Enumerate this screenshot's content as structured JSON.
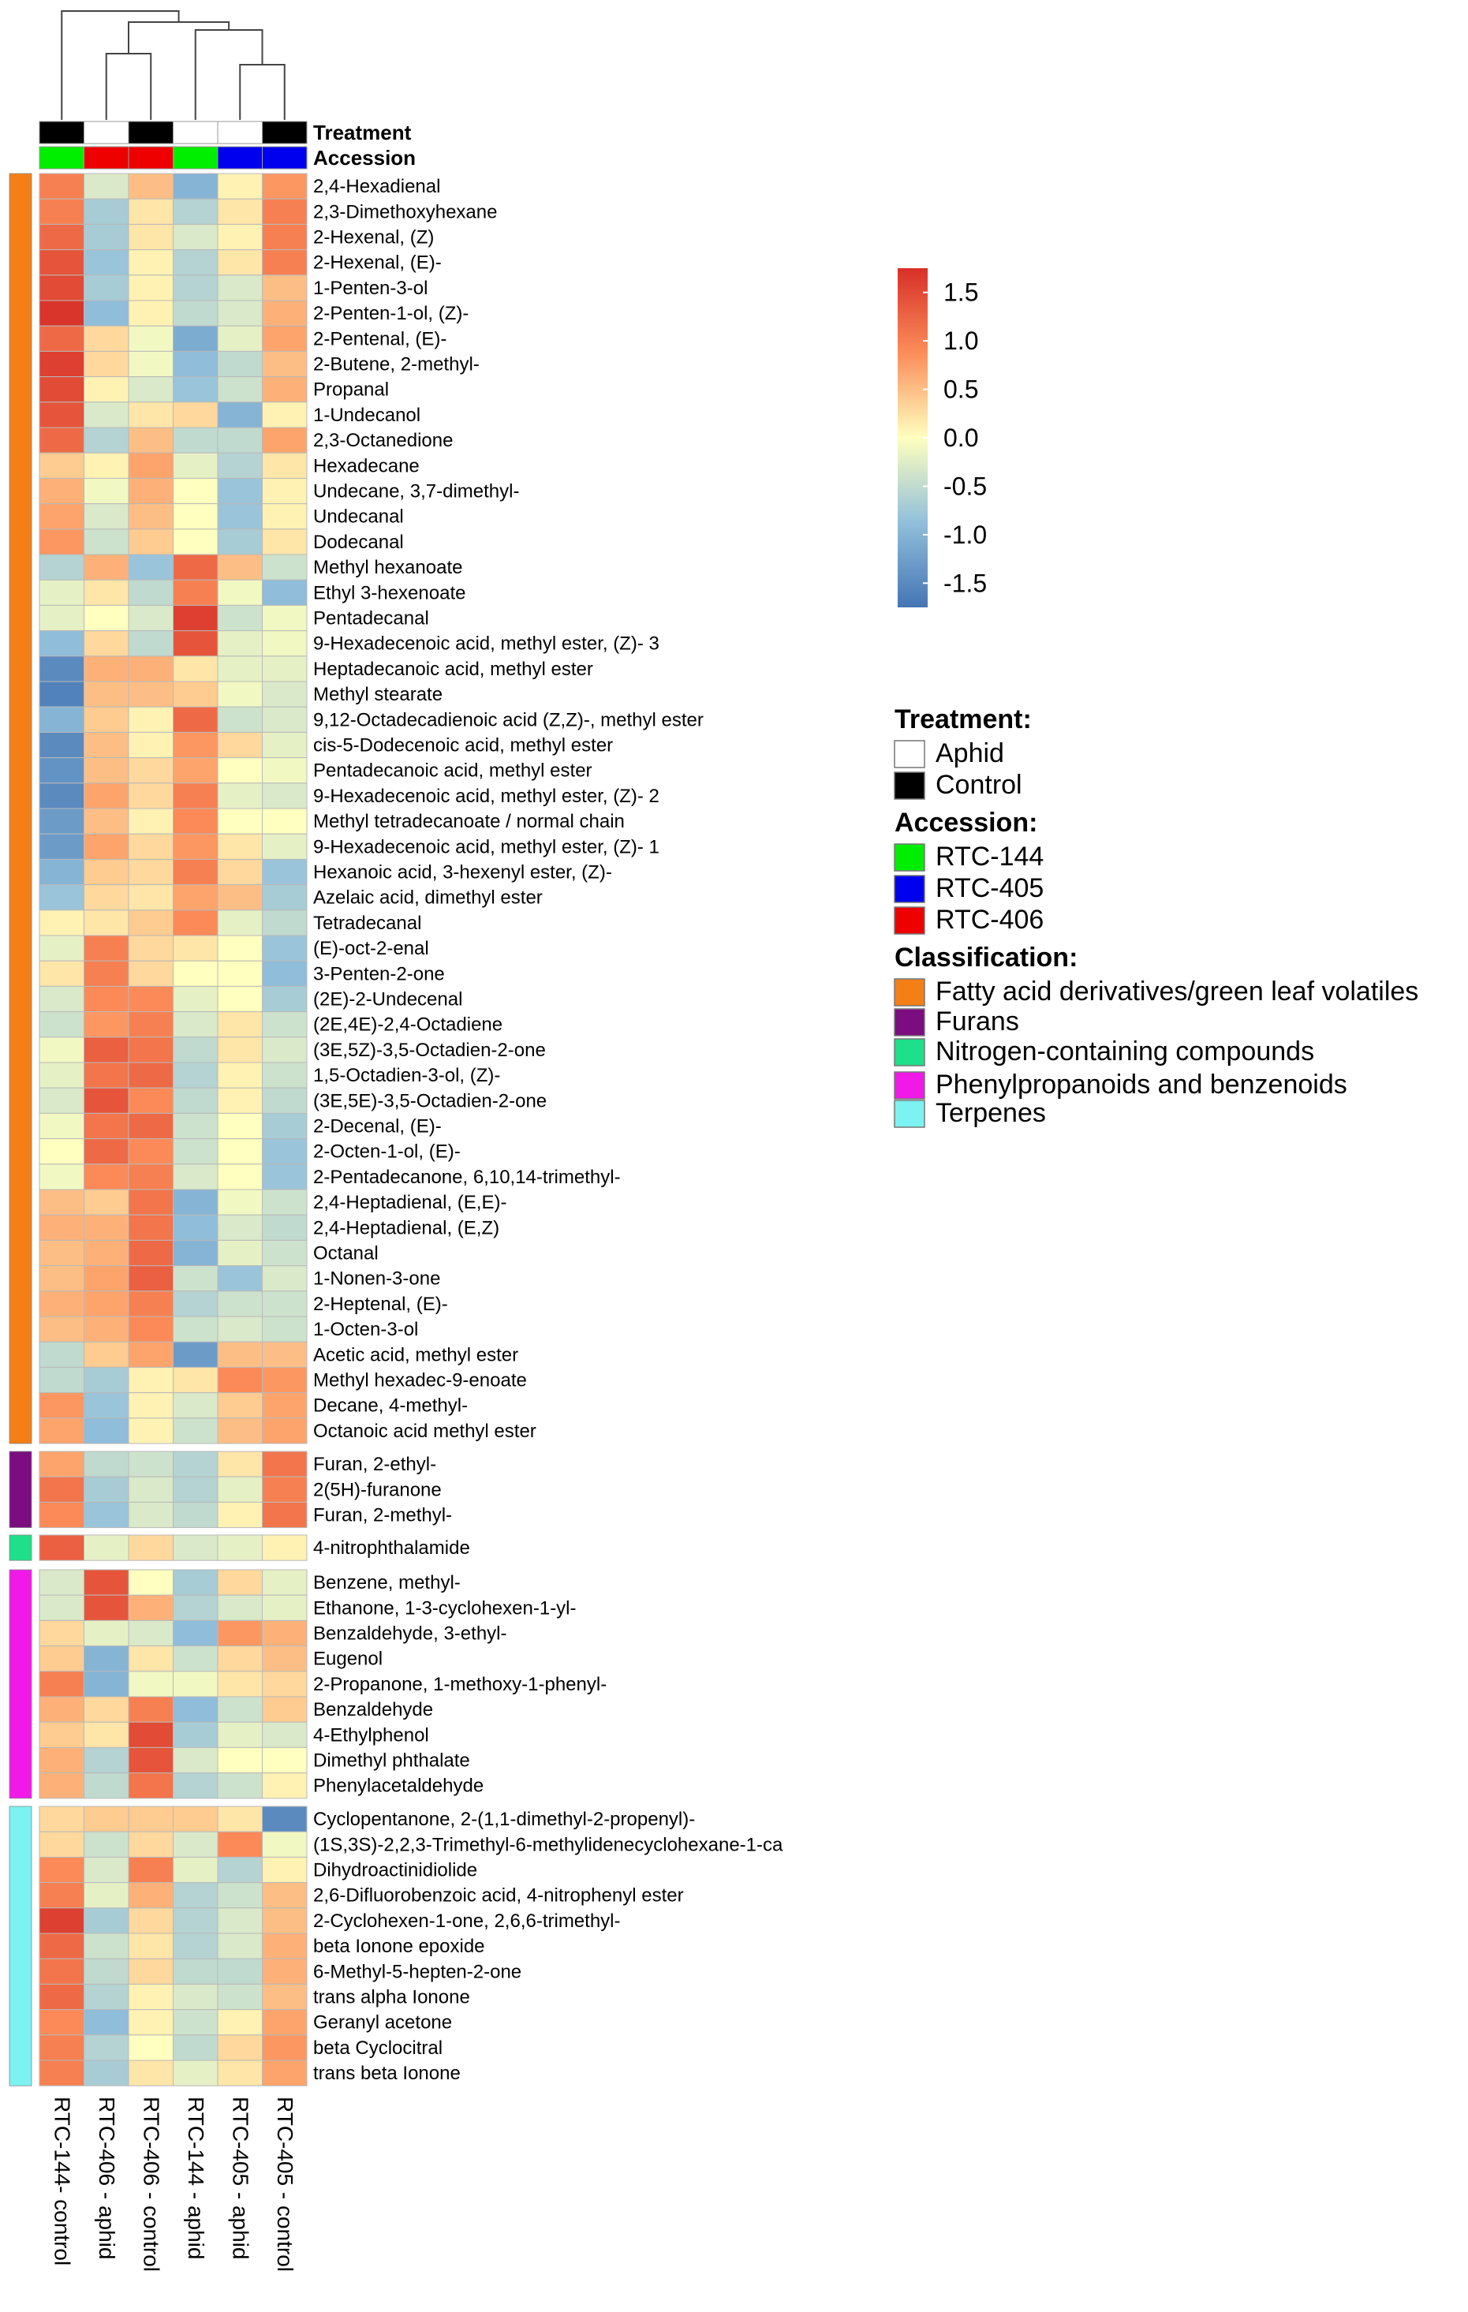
{
  "chart_data": {
    "type": "heatmap",
    "title": "",
    "columns": [
      "RTC-144- control",
      "RTC-406 - aphid",
      "RTC-406 - control",
      "RTC-144 - aphid",
      "RTC-405 - aphid",
      "RTC-405 - control"
    ],
    "column_treatment": [
      "Control",
      "Aphid",
      "Control",
      "Aphid",
      "Aphid",
      "Control"
    ],
    "column_accession": [
      "RTC-144",
      "RTC-406",
      "RTC-406",
      "RTC-144",
      "RTC-405",
      "RTC-405"
    ],
    "annotation_labels": {
      "treatment": "Treatment",
      "accession": "Accession"
    },
    "color_scale": {
      "min": -1.75,
      "max": 1.75,
      "stops": [
        {
          "value": -1.75,
          "color": "#4575b4"
        },
        {
          "value": -0.875,
          "color": "#91bfdb"
        },
        {
          "value": 0.0,
          "color": "#ffffbf"
        },
        {
          "value": 0.875,
          "color": "#fc8d59"
        },
        {
          "value": 1.75,
          "color": "#d73027"
        }
      ],
      "ticks": [
        "1.5",
        "1.0",
        "0.5",
        "0.0",
        "-0.5",
        "-1.0",
        "-1.5"
      ]
    },
    "groups": [
      {
        "classification": "Fatty acid derivatives/green leaf volatiles",
        "rows": [
          {
            "name": "2,4-Hexadienal",
            "values": [
              1.0,
              -0.3,
              0.5,
              -1.0,
              0.1,
              0.8
            ]
          },
          {
            "name": "2,3-Dimethoxyhexane",
            "values": [
              1.0,
              -0.7,
              0.2,
              -0.6,
              0.2,
              1.0
            ]
          },
          {
            "name": "2-Hexenal, (Z)",
            "values": [
              1.2,
              -0.7,
              0.2,
              -0.3,
              0.1,
              1.0
            ]
          },
          {
            "name": "2-Hexenal, (E)-",
            "values": [
              1.4,
              -0.8,
              0.1,
              -0.6,
              0.2,
              1.0
            ]
          },
          {
            "name": "1-Penten-3-ol",
            "values": [
              1.5,
              -0.7,
              0.1,
              -0.6,
              -0.3,
              0.5
            ]
          },
          {
            "name": "2-Penten-1-ol, (Z)-",
            "values": [
              1.7,
              -0.9,
              0.1,
              -0.5,
              -0.3,
              0.6
            ]
          },
          {
            "name": "2-Pentenal, (E)-",
            "values": [
              1.2,
              0.3,
              -0.1,
              -1.1,
              -0.2,
              0.7
            ]
          },
          {
            "name": "2-Butene, 2-methyl-",
            "values": [
              1.6,
              0.3,
              -0.1,
              -0.9,
              -0.5,
              0.5
            ]
          },
          {
            "name": "Propanal",
            "values": [
              1.5,
              0.1,
              -0.3,
              -0.8,
              -0.4,
              0.6
            ]
          },
          {
            "name": "1-Undecanol",
            "values": [
              1.4,
              -0.3,
              0.2,
              0.3,
              -1.0,
              0.1
            ]
          },
          {
            "name": "2,3-Octanedione",
            "values": [
              1.2,
              -0.6,
              0.5,
              -0.5,
              -0.5,
              0.7
            ]
          },
          {
            "name": "Hexadecane",
            "values": [
              0.4,
              0.1,
              0.7,
              -0.2,
              -0.6,
              0.2
            ]
          },
          {
            "name": "Undecane, 3,7-dimethyl-",
            "values": [
              0.6,
              -0.1,
              0.6,
              0.0,
              -0.8,
              0.1
            ]
          },
          {
            "name": "Undecanal",
            "values": [
              0.7,
              -0.3,
              0.5,
              0.0,
              -0.8,
              0.1
            ]
          },
          {
            "name": "Dodecanal",
            "values": [
              0.8,
              -0.4,
              0.4,
              0.0,
              -0.7,
              0.2
            ]
          },
          {
            "name": "Methyl hexanoate",
            "values": [
              -0.6,
              0.6,
              -0.8,
              1.2,
              0.5,
              -0.4
            ]
          },
          {
            "name": "Ethyl 3-hexenoate",
            "values": [
              -0.2,
              0.2,
              -0.5,
              1.0,
              -0.1,
              -0.9
            ]
          },
          {
            "name": "Pentadecanal",
            "values": [
              -0.2,
              0.0,
              -0.3,
              1.6,
              -0.4,
              -0.1
            ]
          },
          {
            "name": "9-Hexadecenoic acid, methyl ester, (Z)- 3",
            "values": [
              -0.9,
              0.3,
              -0.5,
              1.4,
              -0.2,
              -0.1
            ]
          },
          {
            "name": "Heptadecanoic acid, methyl ester",
            "values": [
              -1.5,
              0.6,
              0.6,
              0.2,
              -0.2,
              -0.2
            ]
          },
          {
            "name": "Methyl stearate",
            "values": [
              -1.6,
              0.5,
              0.5,
              0.4,
              -0.1,
              -0.3
            ]
          },
          {
            "name": "9,12-Octadecadienoic acid (Z,Z)-, methyl ester",
            "values": [
              -1.0,
              0.4,
              0.1,
              1.2,
              -0.4,
              -0.3
            ]
          },
          {
            "name": "cis-5-Dodecenoic acid, methyl ester",
            "values": [
              -1.5,
              0.5,
              0.1,
              0.8,
              0.3,
              -0.2
            ]
          },
          {
            "name": "Pentadecanoic acid, methyl ester",
            "values": [
              -1.4,
              0.5,
              0.3,
              0.7,
              0.0,
              -0.1
            ]
          },
          {
            "name": "9-Hexadecenoic acid, methyl ester, (Z)- 2",
            "values": [
              -1.5,
              0.7,
              0.3,
              1.0,
              -0.2,
              -0.3
            ]
          },
          {
            "name": "Methyl tetradecanoate / normal chain",
            "values": [
              -1.3,
              0.5,
              0.1,
              0.9,
              0.0,
              0.0
            ]
          },
          {
            "name": "9-Hexadecenoic acid, methyl ester, (Z)- 1",
            "values": [
              -1.3,
              0.7,
              0.3,
              0.8,
              0.2,
              -0.2
            ]
          },
          {
            "name": "Hexanoic acid, 3-hexenyl ester, (Z)-",
            "values": [
              -1.0,
              0.4,
              0.3,
              1.0,
              0.3,
              -0.8
            ]
          },
          {
            "name": "Azelaic acid, dimethyl ester",
            "values": [
              -0.8,
              0.3,
              0.2,
              0.7,
              0.5,
              -0.7
            ]
          },
          {
            "name": "Tetradecanal",
            "values": [
              0.1,
              0.2,
              0.4,
              0.9,
              -0.2,
              -0.5
            ]
          },
          {
            "name": "(E)-oct-2-enal",
            "values": [
              -0.2,
              1.0,
              0.3,
              0.2,
              0.0,
              -0.8
            ]
          },
          {
            "name": "3-Penten-2-one",
            "values": [
              0.2,
              1.0,
              0.3,
              0.0,
              0.0,
              -0.9
            ]
          },
          {
            "name": "(2E)-2-Undecenal",
            "values": [
              -0.3,
              0.9,
              0.9,
              -0.2,
              0.0,
              -0.7
            ]
          },
          {
            "name": "(2E,4E)-2,4-Octadiene",
            "values": [
              -0.4,
              0.8,
              1.0,
              -0.3,
              0.2,
              -0.4
            ]
          },
          {
            "name": "(3E,5Z)-3,5-Octadien-2-one",
            "values": [
              -0.1,
              1.3,
              1.1,
              -0.5,
              0.2,
              -0.3
            ]
          },
          {
            "name": "1,5-Octadien-3-ol, (Z)-",
            "values": [
              -0.2,
              1.1,
              1.2,
              -0.6,
              0.1,
              -0.4
            ]
          },
          {
            "name": "(3E,5E)-3,5-Octadien-2-one",
            "values": [
              -0.3,
              1.4,
              0.9,
              -0.5,
              0.1,
              -0.5
            ]
          },
          {
            "name": "2-Decenal, (E)-",
            "values": [
              -0.1,
              1.1,
              1.2,
              -0.4,
              0.0,
              -0.7
            ]
          },
          {
            "name": "2-Octen-1-ol, (E)-",
            "values": [
              0.0,
              1.2,
              0.9,
              -0.4,
              0.0,
              -0.8
            ]
          },
          {
            "name": "2-Pentadecanone, 6,10,14-trimethyl-",
            "values": [
              -0.1,
              0.9,
              1.0,
              -0.3,
              0.0,
              -0.8
            ]
          },
          {
            "name": "2,4-Heptadienal, (E,E)-",
            "values": [
              0.5,
              0.4,
              1.1,
              -1.0,
              -0.1,
              -0.4
            ]
          },
          {
            "name": "2,4-Heptadienal, (E,Z)",
            "values": [
              0.6,
              0.6,
              1.1,
              -0.9,
              -0.3,
              -0.5
            ]
          },
          {
            "name": "Octanal",
            "values": [
              0.5,
              0.6,
              1.2,
              -1.0,
              -0.2,
              -0.4
            ]
          },
          {
            "name": "1-Nonen-3-one",
            "values": [
              0.5,
              0.7,
              1.3,
              -0.4,
              -0.8,
              -0.3
            ]
          },
          {
            "name": "2-Heptenal, (E)-",
            "values": [
              0.6,
              0.7,
              1.0,
              -0.6,
              -0.4,
              -0.4
            ]
          },
          {
            "name": "1-Octen-3-ol",
            "values": [
              0.5,
              0.6,
              0.9,
              -0.4,
              -0.3,
              -0.4
            ]
          },
          {
            "name": "Acetic acid, methyl ester",
            "values": [
              -0.5,
              0.4,
              0.7,
              -1.3,
              0.5,
              0.5
            ]
          },
          {
            "name": "Methyl hexadec-9-enoate",
            "values": [
              -0.5,
              -0.7,
              0.1,
              0.2,
              0.9,
              0.8
            ]
          },
          {
            "name": "Decane, 4-methyl-",
            "values": [
              0.8,
              -0.8,
              0.1,
              -0.3,
              0.4,
              0.7
            ]
          },
          {
            "name": "Octanoic acid methyl ester",
            "values": [
              0.7,
              -0.9,
              0.1,
              -0.4,
              0.5,
              0.7
            ]
          }
        ]
      },
      {
        "classification": "Furans",
        "rows": [
          {
            "name": "Furan, 2-ethyl-",
            "values": [
              0.7,
              -0.5,
              -0.4,
              -0.6,
              0.2,
              1.1
            ]
          },
          {
            "name": "2(5H)-furanone",
            "values": [
              1.1,
              -0.7,
              -0.3,
              -0.6,
              -0.2,
              1.0
            ]
          },
          {
            "name": "Furan, 2-methyl-",
            "values": [
              0.9,
              -0.8,
              -0.3,
              -0.5,
              0.1,
              1.1
            ]
          }
        ]
      },
      {
        "classification": "Nitrogen-containing compounds",
        "rows": [
          {
            "name": "4-nitrophthalamide",
            "values": [
              1.3,
              -0.2,
              0.3,
              -0.3,
              -0.2,
              0.1
            ]
          }
        ]
      },
      {
        "classification": "Phenylpropanoids and benzenoids",
        "rows": [
          {
            "name": "Benzene, methyl-",
            "values": [
              -0.3,
              1.4,
              0.0,
              -0.7,
              0.3,
              -0.2
            ]
          },
          {
            "name": "Ethanone, 1-3-cyclohexen-1-yl-",
            "values": [
              -0.3,
              1.4,
              0.6,
              -0.6,
              -0.3,
              -0.2
            ]
          },
          {
            "name": "Benzaldehyde, 3-ethyl-",
            "values": [
              0.3,
              -0.2,
              -0.3,
              -0.9,
              0.8,
              0.6
            ]
          },
          {
            "name": "Eugenol",
            "values": [
              0.4,
              -1.0,
              0.2,
              -0.4,
              0.3,
              0.5
            ]
          },
          {
            "name": "2-Propanone, 1-methoxy-1-phenyl-",
            "values": [
              1.0,
              -1.0,
              -0.1,
              -0.1,
              0.2,
              0.3
            ]
          },
          {
            "name": "Benzaldehyde",
            "values": [
              0.6,
              0.3,
              1.0,
              -0.9,
              -0.4,
              0.4
            ]
          },
          {
            "name": "4-Ethylphenol",
            "values": [
              0.4,
              0.2,
              1.5,
              -0.7,
              -0.2,
              -0.3
            ]
          },
          {
            "name": "Dimethyl phthalate",
            "values": [
              0.6,
              -0.6,
              1.4,
              -0.3,
              0.0,
              0.0
            ]
          },
          {
            "name": "Phenylacetaldehyde",
            "values": [
              0.6,
              -0.5,
              1.1,
              -0.6,
              -0.4,
              0.1
            ]
          }
        ]
      },
      {
        "classification": "Terpenes",
        "rows": [
          {
            "name": "Cyclopentanone, 2-(1,1-dimethyl-2-propenyl)-",
            "values": [
              0.3,
              0.4,
              0.4,
              0.4,
              0.2,
              -1.5
            ]
          },
          {
            "name": "(1S,3S)-2,2,3-Trimethyl-6-methylidenecyclohexane-1-ca",
            "values": [
              0.3,
              -0.4,
              0.3,
              -0.3,
              0.9,
              -0.1
            ]
          },
          {
            "name": "Dihydroactinidiolide",
            "values": [
              0.9,
              -0.3,
              1.0,
              -0.2,
              -0.6,
              0.1
            ]
          },
          {
            "name": "2,6-Difluorobenzoic acid, 4-nitrophenyl ester",
            "values": [
              1.0,
              -0.2,
              0.6,
              -0.6,
              -0.4,
              0.5
            ]
          },
          {
            "name": "2-Cyclohexen-1-one, 2,6,6-trimethyl-",
            "values": [
              1.6,
              -0.7,
              0.3,
              -0.6,
              -0.3,
              0.5
            ]
          },
          {
            "name": "beta Ionone epoxide",
            "values": [
              1.2,
              -0.4,
              0.2,
              -0.6,
              -0.3,
              0.6
            ]
          },
          {
            "name": "6-Methyl-5-hepten-2-one",
            "values": [
              1.1,
              -0.5,
              0.3,
              -0.5,
              -0.5,
              0.6
            ]
          },
          {
            "name": "trans alpha Ionone",
            "values": [
              1.2,
              -0.6,
              0.1,
              -0.3,
              -0.4,
              0.5
            ]
          },
          {
            "name": "Geranyl acetone",
            "values": [
              0.9,
              -0.9,
              0.1,
              -0.4,
              0.1,
              0.7
            ]
          },
          {
            "name": "beta Cyclocitral",
            "values": [
              1.0,
              -0.6,
              0.0,
              -0.5,
              0.3,
              0.8
            ]
          },
          {
            "name": "trans beta Ionone",
            "values": [
              1.0,
              -0.7,
              0.2,
              -0.2,
              0.2,
              0.7
            ]
          }
        ]
      }
    ],
    "legend": {
      "treatment_title": "Treatment:",
      "treatment": [
        {
          "label": "Aphid",
          "color": "#ffffff"
        },
        {
          "label": "Control",
          "color": "#000000"
        }
      ],
      "accession_title": "Accession:",
      "accession": [
        {
          "label": "RTC-144",
          "color": "#00ee00"
        },
        {
          "label": "RTC-405",
          "color": "#0000ee"
        },
        {
          "label": "RTC-406",
          "color": "#ee0000"
        }
      ],
      "classification_title": "Classification:",
      "classification": [
        {
          "label": "Fatty acid derivatives/green leaf volatiles",
          "color": "#f57f17"
        },
        {
          "label": "Furans",
          "color": "#7b0d80"
        },
        {
          "label": "Nitrogen-containing compounds",
          "color": "#1ee08a"
        },
        {
          "label": "Phenylpropanoids and benzenoids",
          "color": "#f019e8"
        },
        {
          "label": "Terpenes",
          "color": "#7cf2f2"
        }
      ]
    }
  }
}
